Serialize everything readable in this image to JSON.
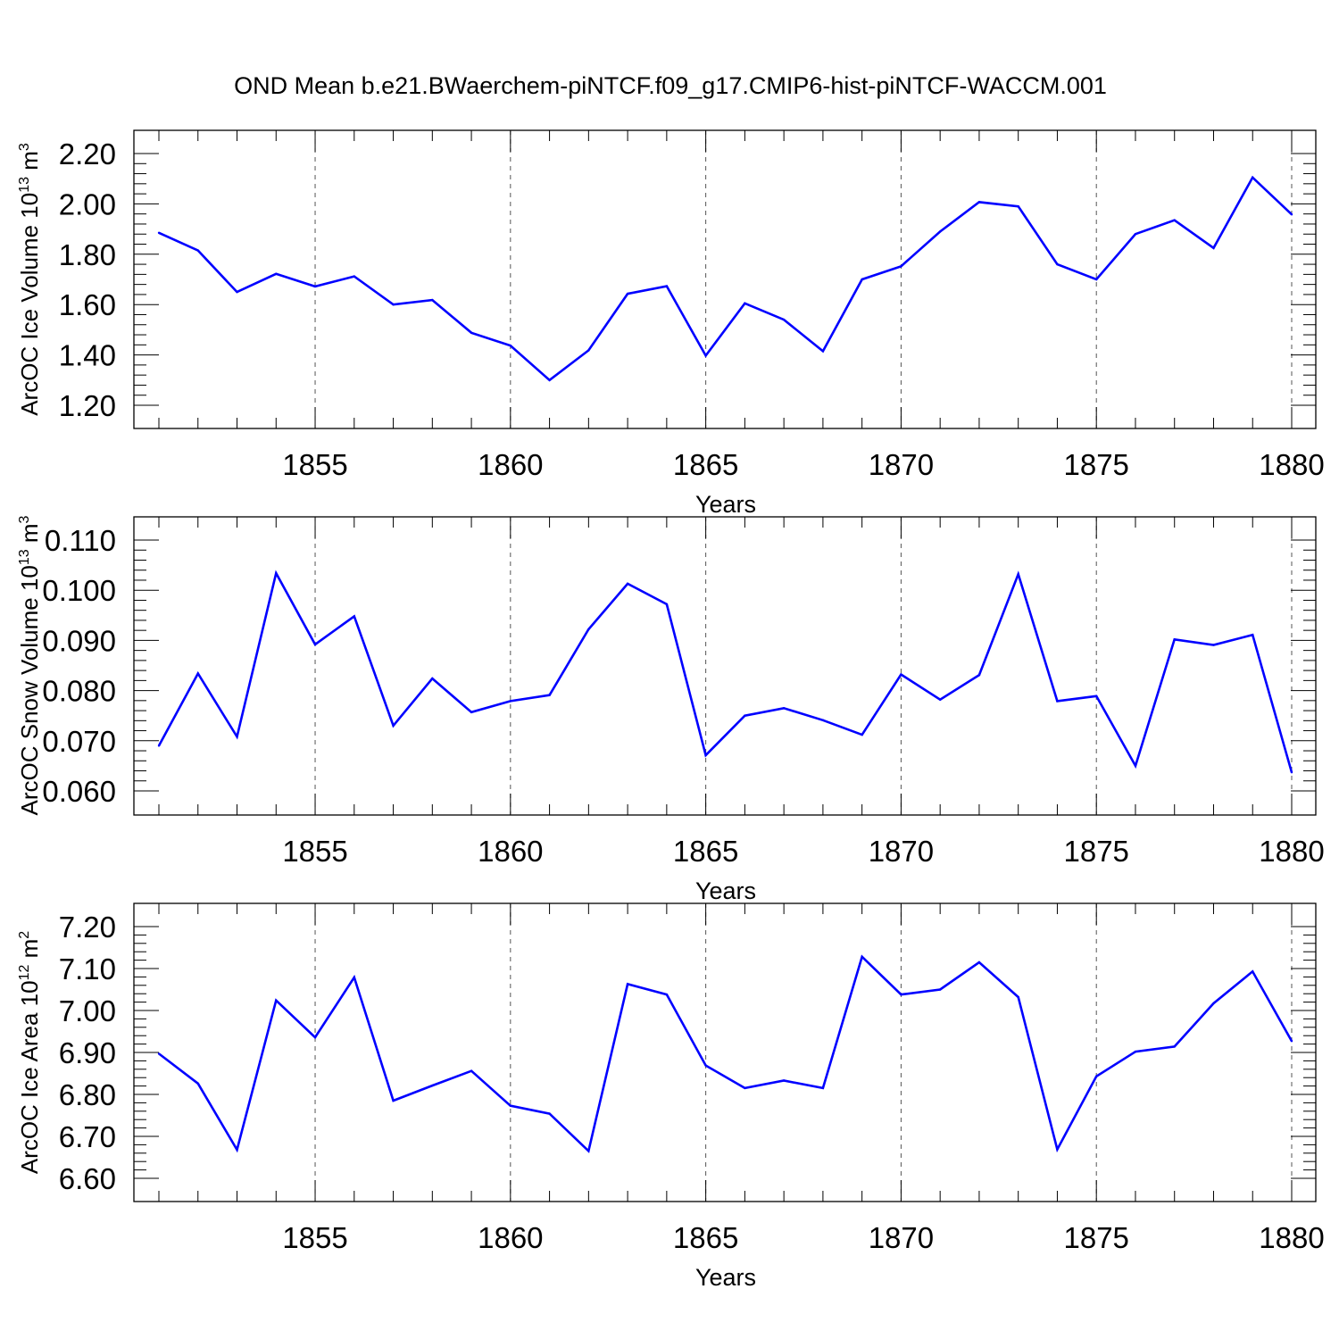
{
  "title": "OND Mean b.e21.BWaerchem-piNTCF.f09_g17.CMIP6-hist-piNTCF-WACCM.001",
  "colors": {
    "line": "#0000ff",
    "axis": "#000000",
    "grid": "#555555"
  },
  "chart_data": [
    {
      "type": "line",
      "xlabel": "Years",
      "ylabel_main": "ArcOC Ice Volume 10",
      "ylabel_exp": "13",
      "ylabel_unit": " m",
      "ylabel_unit_exp": "3",
      "xlim": [
        1851,
        1880
      ],
      "ylim": [
        1.2,
        2.2
      ],
      "x_ticks": [
        "1855",
        "1860",
        "1865",
        "1870",
        "1875",
        "1880"
      ],
      "y_ticks": [
        "1.20",
        "1.40",
        "1.60",
        "1.80",
        "2.00",
        "2.20"
      ],
      "x": [
        1851,
        1852,
        1853,
        1854,
        1855,
        1856,
        1857,
        1858,
        1859,
        1860,
        1861,
        1862,
        1863,
        1864,
        1865,
        1866,
        1867,
        1868,
        1869,
        1870,
        1871,
        1872,
        1873,
        1874,
        1875,
        1876,
        1877,
        1878,
        1879,
        1880
      ],
      "values": [
        1.885,
        1.815,
        1.65,
        1.722,
        1.672,
        1.712,
        1.6,
        1.618,
        1.488,
        1.437,
        1.3,
        1.418,
        1.643,
        1.673,
        1.397,
        1.605,
        1.54,
        1.415,
        1.7,
        1.752,
        1.89,
        2.007,
        1.99,
        1.76,
        1.7,
        1.88,
        1.935,
        1.825,
        2.105,
        1.958
      ]
    },
    {
      "type": "line",
      "xlabel": "Years",
      "ylabel_main": "ArcOC Snow Volume 10",
      "ylabel_exp": "13",
      "ylabel_unit": " m",
      "ylabel_unit_exp": "3",
      "xlim": [
        1851,
        1880
      ],
      "ylim": [
        0.06,
        0.11
      ],
      "x_ticks": [
        "1855",
        "1860",
        "1865",
        "1870",
        "1875",
        "1880"
      ],
      "y_ticks": [
        "0.060",
        "0.070",
        "0.080",
        "0.090",
        "0.100",
        "0.110"
      ],
      "x": [
        1851,
        1852,
        1853,
        1854,
        1855,
        1856,
        1857,
        1858,
        1859,
        1860,
        1861,
        1862,
        1863,
        1864,
        1865,
        1866,
        1867,
        1868,
        1869,
        1870,
        1871,
        1872,
        1873,
        1874,
        1875,
        1876,
        1877,
        1878,
        1879,
        1880
      ],
      "values": [
        0.069,
        0.0834,
        0.0708,
        0.1034,
        0.0892,
        0.0948,
        0.073,
        0.0824,
        0.0757,
        0.0779,
        0.0791,
        0.0922,
        0.1013,
        0.0972,
        0.0671,
        0.075,
        0.0765,
        0.0741,
        0.0712,
        0.0832,
        0.0782,
        0.0831,
        0.1032,
        0.0779,
        0.0789,
        0.065,
        0.0902,
        0.0891,
        0.0911,
        0.0637
      ]
    },
    {
      "type": "line",
      "xlabel": "Years",
      "ylabel_main": "ArcOC Ice Area 10",
      "ylabel_exp": "12",
      "ylabel_unit": " m",
      "ylabel_unit_exp": "2",
      "xlim": [
        1851,
        1880
      ],
      "ylim": [
        6.6,
        7.2
      ],
      "x_ticks": [
        "1855",
        "1860",
        "1865",
        "1870",
        "1875",
        "1880"
      ],
      "y_ticks": [
        "6.60",
        "6.70",
        "6.80",
        "6.90",
        "7.00",
        "7.10",
        "7.20"
      ],
      "x": [
        1851,
        1852,
        1853,
        1854,
        1855,
        1856,
        1857,
        1858,
        1859,
        1860,
        1861,
        1862,
        1863,
        1864,
        1865,
        1866,
        1867,
        1868,
        1869,
        1870,
        1871,
        1872,
        1873,
        1874,
        1875,
        1876,
        1877,
        1878,
        1879,
        1880
      ],
      "values": [
        6.897,
        6.826,
        6.668,
        7.024,
        6.936,
        7.079,
        6.785,
        6.821,
        6.856,
        6.773,
        6.754,
        6.665,
        7.063,
        7.038,
        6.869,
        6.815,
        6.833,
        6.815,
        7.128,
        7.038,
        7.05,
        7.115,
        7.032,
        6.669,
        6.843,
        6.902,
        6.914,
        7.017,
        7.093,
        6.927
      ]
    }
  ]
}
